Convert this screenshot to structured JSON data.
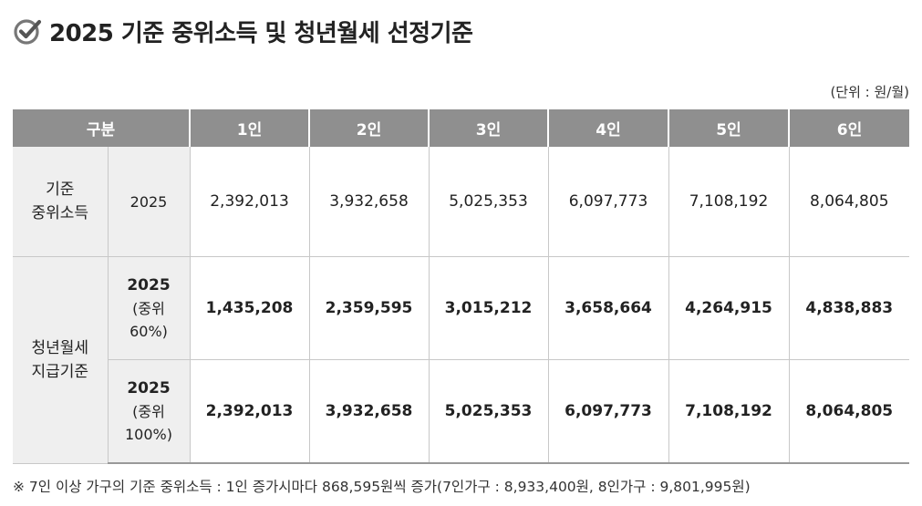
{
  "title": "2025 기준 중위소득 및 청년월세 선정기준",
  "icon": "check-circle-icon",
  "unit_note": "(단위 : 원/월)",
  "header": {
    "category": "구분",
    "columns": [
      "1인",
      "2인",
      "3인",
      "4인",
      "5인",
      "6인"
    ]
  },
  "rows": {
    "median": {
      "label_line1": "기준",
      "label_line2": "중위소득",
      "year": "2025",
      "values": [
        "2,392,013",
        "3,932,658",
        "5,025,353",
        "6,097,773",
        "7,108,192",
        "8,064,805"
      ]
    },
    "rent_label_line1": "청년월세",
    "rent_label_line2": "지급기준",
    "rent60": {
      "year": "2025",
      "pct_line1": "(중위",
      "pct_line2": "60%)",
      "values": [
        "1,435,208",
        "2,359,595",
        "3,015,212",
        "3,658,664",
        "4,264,915",
        "4,838,883"
      ]
    },
    "rent100": {
      "year": "2025",
      "pct_line1": "(중위",
      "pct_line2": "100%)",
      "values": [
        "2,392,013",
        "3,932,658",
        "5,025,353",
        "6,097,773",
        "7,108,192",
        "8,064,805"
      ]
    }
  },
  "footnote": "※ 7인 이상 가구의 기준 중위소득 : 1인 증가시마다 868,595원씩 증가(7인가구 : 8,933,400원, 8인가구 : 9,801,995원)",
  "colors": {
    "header_bg": "#8f8f8f",
    "label_bg": "#efefef",
    "border": "#c8c8c8"
  }
}
